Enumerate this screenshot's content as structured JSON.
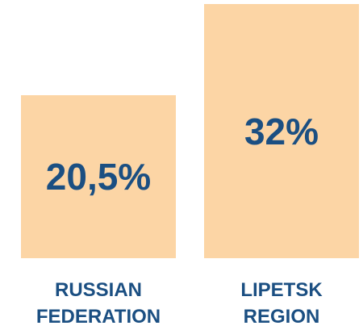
{
  "chart_data": {
    "type": "bar",
    "categories": [
      "RUSSIAN FEDERATION",
      "LIPETSK REGION"
    ],
    "values": [
      20.5,
      32
    ],
    "value_labels": [
      "20,5%",
      "32%"
    ],
    "color": "#fcd5a5",
    "label_color": "#1b4f82"
  }
}
